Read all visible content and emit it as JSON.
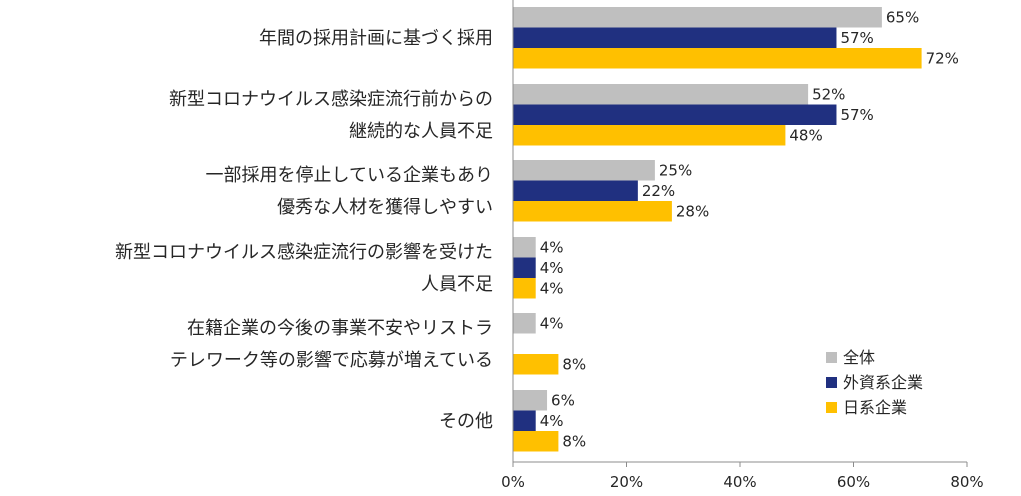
{
  "chart_data": {
    "type": "bar",
    "orientation": "horizontal",
    "categories": [
      [
        "年間の採用計画に基づく採用"
      ],
      [
        "新型コロナウイルス感染症流行前からの",
        "継続的な人員不足"
      ],
      [
        "一部採用を停止している企業もあり",
        "優秀な人材を獲得しやすい"
      ],
      [
        "新型コロナウイルス感染症流行の影響を受けた",
        "人員不足"
      ],
      [
        "在籍企業の今後の事業不安やリストラ",
        "テレワーク等の影響で応募が増えている"
      ],
      [
        "その他"
      ]
    ],
    "series": [
      {
        "name": "全体",
        "color": "#bfbfbf",
        "values": [
          65,
          52,
          25,
          4,
          4,
          6
        ],
        "labels": [
          "65%",
          "52%",
          "25%",
          "4%",
          "4%",
          "6%"
        ]
      },
      {
        "name": "外資系企業",
        "color": "#203080",
        "values": [
          57,
          57,
          22,
          4,
          0,
          4
        ],
        "labels": [
          "57%",
          "57%",
          "22%",
          "4%",
          "",
          "4%"
        ]
      },
      {
        "name": "日系企業",
        "color": "#ffc000",
        "values": [
          72,
          48,
          28,
          4,
          8,
          8
        ],
        "labels": [
          "72%",
          "48%",
          "28%",
          "4%",
          "8%",
          "8%"
        ]
      }
    ],
    "xlim": [
      0,
      80
    ],
    "xticks": [
      0,
      20,
      40,
      60,
      80
    ],
    "xtick_labels": [
      "0%",
      "20%",
      "40%",
      "60%",
      "80%"
    ],
    "legend_position": "bottom-right",
    "grid": false
  }
}
